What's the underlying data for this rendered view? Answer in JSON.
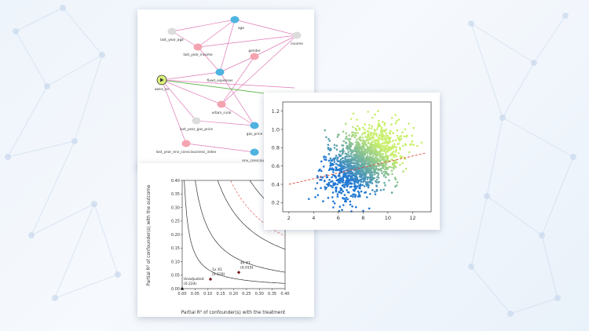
{
  "background": {
    "nodes_color": "#c9d9ec"
  },
  "causal_graph": {
    "nodes": [
      {
        "id": "age",
        "label": "age",
        "color": "#4fb3e0"
      },
      {
        "id": "last_year_age",
        "label": "last_year_age",
        "color": "#dcdcdc"
      },
      {
        "id": "income",
        "label": "income",
        "color": "#dcdcdc"
      },
      {
        "id": "last_year_income",
        "label": "last_year_income",
        "color": "#f4a3b0"
      },
      {
        "id": "gender",
        "label": "gender",
        "color": "#f4a3b0"
      },
      {
        "id": "fixed_expenses",
        "label": "fixed_expenses",
        "color": "#4fb3e0"
      },
      {
        "id": "owns_ev",
        "label": "owns_ev",
        "color": "#d9f078"
      },
      {
        "id": "urban_rural",
        "label": "urban_rural",
        "color": "#f4a3b0"
      },
      {
        "id": "last_year_gas_price",
        "label": "last_year_gas_price",
        "color": "#dcdcdc"
      },
      {
        "id": "gas_price",
        "label": "gas_price",
        "color": "#4fb3e0"
      },
      {
        "id": "last_year_env_consciousness_index",
        "label": "last_year_env_consciousness_index",
        "color": "#f4a3b0"
      },
      {
        "id": "env_consciousness",
        "label": "env_conscious",
        "color": "#4fb3e0"
      }
    ],
    "edge_color": "#e07ab8",
    "highlight_edge_color": "#66bb55"
  },
  "sensitivity_plot": {
    "xlabel": "Partial R² of confounder(s) with the treatment",
    "ylabel": "Partial R² of confounder(s) with the outcome",
    "x_ticks": [
      "0.00",
      "0.05",
      "0.10",
      "0.15",
      "0.20",
      "0.25",
      "0.30",
      "0.35",
      "0.40"
    ],
    "y_ticks": [
      "0.00",
      "0.05",
      "0.10",
      "0.15",
      "0.20",
      "0.25",
      "0.30",
      "0.35",
      "0.40"
    ],
    "xlim": [
      0,
      0.4
    ],
    "ylim": [
      0,
      0.4
    ],
    "points": [
      {
        "label": "Unadjusted",
        "value": "(0.224)",
        "x": 0.0,
        "y": 0.0
      },
      {
        "label": "1x X1",
        "value": "(0.129)",
        "x": 0.11,
        "y": 0.035
      },
      {
        "label": "4x X1",
        "value": "(0.019)",
        "x": 0.22,
        "y": 0.06
      }
    ],
    "contours": [
      0.008,
      0.025,
      0.06,
      0.11,
      0.17,
      0.24
    ],
    "threshold_contour": 0.08
  },
  "chart_data": {
    "type": "scatter",
    "title": "",
    "xlabel": "",
    "ylabel": "",
    "xlim": [
      1.5,
      13.5
    ],
    "ylim": [
      0.1,
      1.3
    ],
    "x_ticks": [
      "2",
      "4",
      "6",
      "8",
      "10",
      "12"
    ],
    "y_ticks": [
      "0.2",
      "0.4",
      "0.6",
      "0.8",
      "1.0",
      "1.2"
    ],
    "point_count": 1500,
    "trend_line": {
      "x": [
        2,
        13
      ],
      "y": [
        0.4,
        0.74
      ]
    },
    "center": {
      "x": 8.0,
      "y": 0.65
    },
    "spread": {
      "x": 1.5,
      "y": 0.17
    },
    "color_low": "#1f77d4",
    "color_high": "#c8ef6a",
    "trend_color": "#e04b3a"
  }
}
